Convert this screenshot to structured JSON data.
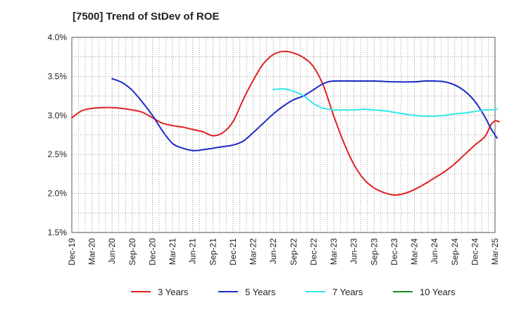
{
  "chart_data": {
    "type": "line",
    "title": "[7500]  Trend of StDev of ROE",
    "x_ticks": [
      "Dec-19",
      "Mar-20",
      "Jun-20",
      "Sep-20",
      "Dec-20",
      "Mar-21",
      "Jun-21",
      "Sep-21",
      "Dec-21",
      "Mar-22",
      "Jun-22",
      "Sep-22",
      "Dec-22",
      "Mar-23",
      "Jun-23",
      "Sep-23",
      "Dec-23",
      "Mar-24",
      "Jun-24",
      "Sep-24",
      "Dec-24",
      "Mar-25"
    ],
    "y_ticks": [
      "1.5%",
      "2.0%",
      "2.5%",
      "3.0%",
      "3.5%",
      "4.0%"
    ],
    "ylim": [
      1.5,
      4.0
    ],
    "y_unit": "%",
    "grid": true,
    "legend_position": "bottom",
    "series": [
      {
        "name": "3 Years",
        "color": "#e02020",
        "x": [
          0,
          0.5,
          1,
          1.5,
          2,
          2.5,
          3,
          3.5,
          4,
          4.5,
          5,
          5.5,
          6,
          6.5,
          7,
          7.5,
          8,
          8.5,
          9,
          9.5,
          10,
          10.5,
          11,
          11.5,
          12,
          12.5,
          13,
          13.5,
          14,
          14.5,
          15,
          15.5,
          16,
          16.5,
          17,
          17.5,
          18,
          18.5,
          19,
          19.5,
          20,
          20.5
        ],
        "y": [
          2.97,
          3.06,
          3.09,
          3.1,
          3.1,
          3.09,
          3.07,
          3.04,
          2.97,
          2.9,
          2.87,
          2.85,
          2.82,
          2.79,
          2.74,
          2.78,
          2.92,
          3.2,
          3.45,
          3.66,
          3.78,
          3.82,
          3.8,
          3.74,
          3.62,
          3.37,
          2.99,
          2.65,
          2.37,
          2.18,
          2.07,
          2.01,
          1.98,
          2.0,
          2.05,
          2.12,
          2.2,
          2.28,
          2.38,
          2.5,
          2.62,
          2.73
        ]
      },
      {
        "name": "5 Years",
        "color": "#1c2cc8",
        "x": [
          2,
          2.5,
          3,
          3.5,
          4,
          4.5,
          5,
          5.5,
          6,
          6.5,
          7,
          7.5,
          8,
          8.5,
          9,
          9.5,
          10,
          10.5,
          11,
          11.5,
          12,
          12.5,
          13,
          14,
          15,
          16,
          17,
          17.5,
          18,
          18.5,
          19,
          19.5,
          20,
          20.5
        ],
        "y": [
          3.47,
          3.42,
          3.32,
          3.17,
          3.0,
          2.8,
          2.64,
          2.58,
          2.55,
          2.56,
          2.58,
          2.6,
          2.62,
          2.67,
          2.78,
          2.9,
          3.02,
          3.12,
          3.2,
          3.25,
          3.33,
          3.41,
          3.44,
          3.44,
          3.44,
          3.43,
          3.43,
          3.44,
          3.44,
          3.43,
          3.39,
          3.31,
          3.18,
          2.98
        ]
      },
      {
        "name": "7 Years",
        "color": "#33e8e8",
        "x": [
          10,
          10.5,
          11,
          11.5,
          12,
          12.5,
          13,
          13.5,
          14,
          14.5,
          15,
          15.5,
          16,
          16.5,
          17,
          17.5,
          18,
          18.5,
          19,
          19.5,
          20,
          20.5
        ],
        "y": [
          3.33,
          3.34,
          3.31,
          3.25,
          3.15,
          3.09,
          3.07,
          3.07,
          3.07,
          3.08,
          3.07,
          3.06,
          3.04,
          3.02,
          3.0,
          2.99,
          2.99,
          3.0,
          3.02,
          3.03,
          3.05,
          3.07
        ]
      },
      {
        "name": "10 Years",
        "color": "#1a8c1a",
        "x": [],
        "y": []
      }
    ],
    "tail_points": {
      "3 Years": [
        [
          20.5,
          2.73
        ],
        [
          20.8,
          2.88
        ],
        [
          21.0,
          2.93
        ],
        [
          21.2,
          2.92
        ]
      ],
      "5 Years": [
        [
          20.5,
          2.98
        ],
        [
          20.8,
          2.83
        ],
        [
          21.1,
          2.71
        ]
      ],
      "7 Years": [
        [
          20.5,
          3.07
        ],
        [
          20.8,
          3.07
        ],
        [
          21.1,
          3.08
        ]
      ]
    }
  }
}
